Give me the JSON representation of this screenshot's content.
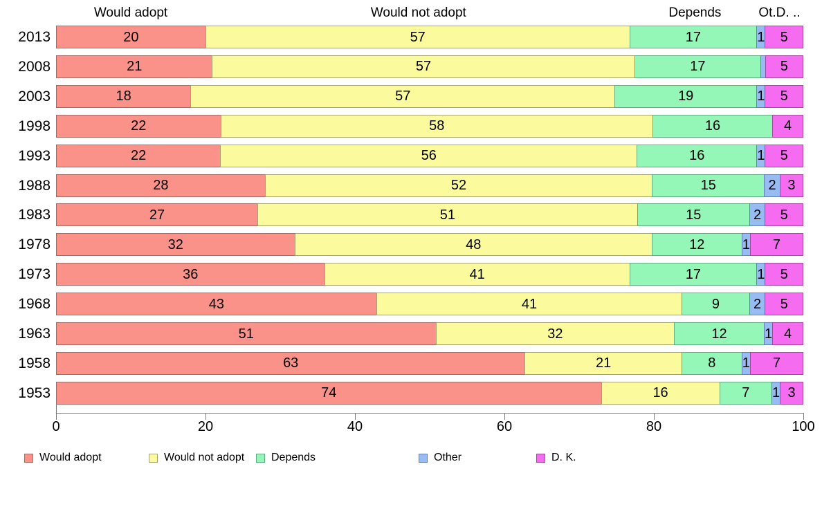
{
  "chart_data": {
    "type": "bar",
    "orientation": "horizontal",
    "stacked": true,
    "title": "",
    "grid": false,
    "legend_position": "bottom",
    "xlim": [
      0,
      100
    ],
    "x_ticks": [
      0,
      20,
      40,
      60,
      80,
      100
    ],
    "x_tick_labels": [
      "0",
      "20",
      "40",
      "60",
      "80",
      "100"
    ],
    "categories": [
      "2013",
      "2008",
      "2003",
      "1998",
      "1993",
      "1988",
      "1983",
      "1978",
      "1973",
      "1968",
      "1963",
      "1958",
      "1953"
    ],
    "column_headers": [
      {
        "label": "Would adopt",
        "center_pct": 10
      },
      {
        "label": "Would not adopt",
        "center_pct": 48.5
      },
      {
        "label": "Depends",
        "center_pct": 85.5
      },
      {
        "label": "Ot.D. ..",
        "center_pct": 96.8
      }
    ],
    "series": [
      {
        "name": "Would adopt",
        "color": "#fb928a",
        "border": "#a96963",
        "values": [
          20,
          21,
          18,
          22,
          22,
          28,
          27,
          32,
          36,
          43,
          51,
          63,
          74
        ],
        "labels": [
          "20",
          "21",
          "18",
          "22",
          "22",
          "28",
          "27",
          "32",
          "36",
          "43",
          "51",
          "63",
          "74"
        ]
      },
      {
        "name": "Would not adopt",
        "color": "#fbfb9d",
        "border": "#a3a36b",
        "values": [
          57,
          57,
          57,
          58,
          56,
          52,
          51,
          48,
          41,
          41,
          32,
          21,
          16
        ],
        "labels": [
          "57",
          "57",
          "57",
          "58",
          "56",
          "52",
          "51",
          "48",
          "41",
          "41",
          "32",
          "21",
          "16"
        ]
      },
      {
        "name": "Depends",
        "color": "#94f7b7",
        "border": "#5fae80",
        "values": [
          17,
          17,
          19,
          16,
          16,
          15,
          15,
          12,
          17,
          9,
          12,
          8,
          7
        ],
        "labels": [
          "17",
          "17",
          "19",
          "16",
          "16",
          "15",
          "15",
          "12",
          "17",
          "9",
          "12",
          "8",
          "7"
        ]
      },
      {
        "name": "Other",
        "color": "#97bcf4",
        "border": "#6381b5",
        "values": [
          1,
          0.5,
          1,
          0,
          1,
          2,
          2,
          1,
          1,
          2,
          1,
          1,
          1
        ],
        "labels": [
          "1",
          "",
          "1",
          "",
          "1",
          "2",
          "2",
          "1",
          "1",
          "2",
          "1",
          "1",
          "1"
        ]
      },
      {
        "name": "D. K.",
        "color": "#f56cf0",
        "border": "#a4489f",
        "values": [
          5,
          5,
          5,
          4,
          5,
          3,
          5,
          7,
          5,
          5,
          4,
          7,
          3
        ],
        "labels": [
          "5",
          "5",
          "5",
          "4",
          "5",
          "3",
          "5",
          "7",
          "5",
          "5",
          "4",
          "7",
          "3"
        ]
      }
    ],
    "legend": [
      "Would adopt",
      "Would not adopt",
      "Depends",
      "Other",
      "D. K."
    ]
  }
}
